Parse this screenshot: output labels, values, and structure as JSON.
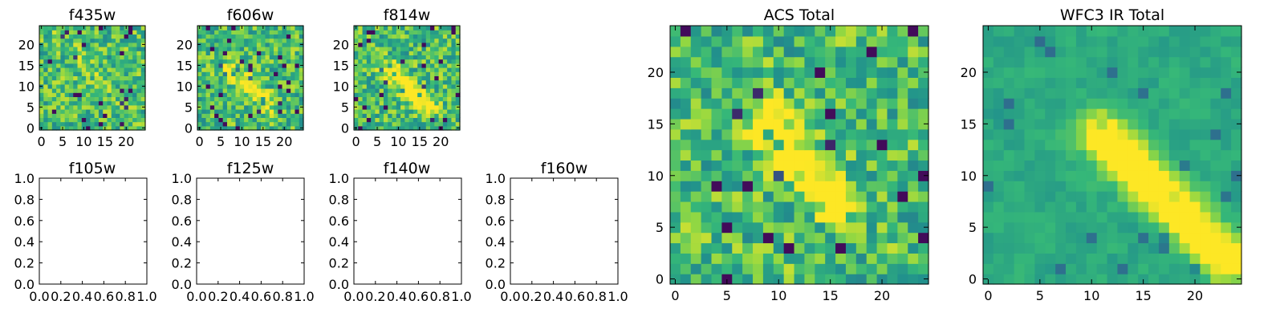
{
  "figure": {
    "colormap": [
      "#440154",
      "#31688e",
      "#21918c",
      "#35b779",
      "#90d743",
      "#fde725"
    ],
    "panels": [
      {
        "id": "f435w",
        "title": "f435w",
        "kind": "image",
        "nx": 25,
        "ny": 25,
        "seed": 11,
        "diagonal": {
          "x0": 4,
          "y0": 22,
          "x1": 21,
          "y1": 3,
          "strength": 0.1
        },
        "xticks": [
          0,
          5,
          10,
          15,
          20
        ],
        "yticks": [
          0,
          5,
          10,
          15,
          20
        ]
      },
      {
        "id": "f606w",
        "title": "f606w",
        "kind": "image",
        "nx": 25,
        "ny": 25,
        "seed": 23,
        "diagonal": {
          "x0": 7,
          "y0": 14,
          "x1": 16,
          "y1": 6,
          "strength": 0.4
        },
        "xticks": [
          0,
          5,
          10,
          15,
          20
        ],
        "yticks": [
          0,
          5,
          10,
          15,
          20
        ]
      },
      {
        "id": "f814w",
        "title": "f814w",
        "kind": "image",
        "nx": 25,
        "ny": 25,
        "seed": 37,
        "diagonal": {
          "x0": 8,
          "y0": 14,
          "x1": 17,
          "y1": 5,
          "strength": 0.55
        },
        "xticks": [
          0,
          5,
          10,
          15,
          20
        ],
        "yticks": [
          0,
          5,
          10,
          15,
          20
        ]
      },
      {
        "id": "f105w",
        "title": "f105w",
        "kind": "empty",
        "xticks": [
          "0.0",
          "0.2",
          "0.4",
          "0.6",
          "0.8",
          "1.0"
        ],
        "yticks": [
          "0.0",
          "0.2",
          "0.4",
          "0.6",
          "0.8",
          "1.0"
        ]
      },
      {
        "id": "f125w",
        "title": "f125w",
        "kind": "empty",
        "xticks": [
          "0.0",
          "0.2",
          "0.4",
          "0.6",
          "0.8",
          "1.0"
        ],
        "yticks": [
          "0.0",
          "0.2",
          "0.4",
          "0.6",
          "0.8",
          "1.0"
        ]
      },
      {
        "id": "f140w",
        "title": "f140w",
        "kind": "empty",
        "xticks": [
          "0.0",
          "0.2",
          "0.4",
          "0.6",
          "0.8",
          "1.0"
        ],
        "yticks": [
          "0.0",
          "0.2",
          "0.4",
          "0.6",
          "0.8",
          "1.0"
        ]
      },
      {
        "id": "f160w",
        "title": "f160w",
        "kind": "empty",
        "xticks": [
          "0.0",
          "0.2",
          "0.4",
          "0.6",
          "0.8",
          "1.0"
        ],
        "yticks": [
          "0.0",
          "0.2",
          "0.4",
          "0.6",
          "0.8",
          "1.0"
        ]
      },
      {
        "id": "acs_total",
        "title": "ACS Total",
        "kind": "image",
        "nx": 25,
        "ny": 25,
        "seed": 53,
        "diagonal": {
          "x0": 9,
          "y0": 15,
          "x1": 15,
          "y1": 8,
          "strength": 0.55
        },
        "xticks": [
          0,
          5,
          10,
          15,
          20
        ],
        "yticks": [
          0,
          5,
          10,
          15,
          20
        ]
      },
      {
        "id": "wfc3_ir_total",
        "title": "WFC3 IR Total",
        "kind": "image",
        "nx": 25,
        "ny": 25,
        "seed": 71,
        "smooth": true,
        "diagonal": {
          "x0": 11,
          "y0": 14,
          "x1": 23,
          "y1": 2,
          "strength": 0.75
        },
        "xticks": [
          0,
          5,
          10,
          15,
          20
        ],
        "yticks": [
          0,
          5,
          10,
          15,
          20
        ]
      }
    ]
  },
  "chart_data": [
    {
      "type": "heatmap",
      "title": "f435w",
      "xlim": [
        -0.5,
        24.5
      ],
      "ylim": [
        -0.5,
        24.5
      ],
      "xticks": [
        0,
        5,
        10,
        15,
        20
      ],
      "yticks": [
        0,
        5,
        10,
        15,
        20
      ],
      "colormap": "viridis"
    },
    {
      "type": "heatmap",
      "title": "f606w",
      "xlim": [
        -0.5,
        24.5
      ],
      "ylim": [
        -0.5,
        24.5
      ],
      "xticks": [
        0,
        5,
        10,
        15,
        20
      ],
      "yticks": [
        0,
        5,
        10,
        15,
        20
      ],
      "colormap": "viridis"
    },
    {
      "type": "heatmap",
      "title": "f814w",
      "xlim": [
        -0.5,
        24.5
      ],
      "ylim": [
        -0.5,
        24.5
      ],
      "xticks": [
        0,
        5,
        10,
        15,
        20
      ],
      "yticks": [
        0,
        5,
        10,
        15,
        20
      ],
      "colormap": "viridis"
    },
    {
      "type": "scatter",
      "title": "f105w",
      "xlim": [
        0,
        1
      ],
      "ylim": [
        0,
        1
      ],
      "series": []
    },
    {
      "type": "scatter",
      "title": "f125w",
      "xlim": [
        0,
        1
      ],
      "ylim": [
        0,
        1
      ],
      "series": []
    },
    {
      "type": "scatter",
      "title": "f140w",
      "xlim": [
        0,
        1
      ],
      "ylim": [
        0,
        1
      ],
      "series": []
    },
    {
      "type": "scatter",
      "title": "f160w",
      "xlim": [
        0,
        1
      ],
      "ylim": [
        0,
        1
      ],
      "series": []
    },
    {
      "type": "heatmap",
      "title": "ACS Total",
      "xlim": [
        -0.5,
        24.5
      ],
      "ylim": [
        -0.5,
        24.5
      ],
      "xticks": [
        0,
        5,
        10,
        15,
        20
      ],
      "yticks": [
        0,
        5,
        10,
        15,
        20
      ],
      "colormap": "viridis"
    },
    {
      "type": "heatmap",
      "title": "WFC3 IR Total",
      "xlim": [
        -0.5,
        24.5
      ],
      "ylim": [
        -0.5,
        24.5
      ],
      "xticks": [
        0,
        5,
        10,
        15,
        20
      ],
      "yticks": [
        0,
        5,
        10,
        15,
        20
      ],
      "colormap": "viridis"
    }
  ]
}
